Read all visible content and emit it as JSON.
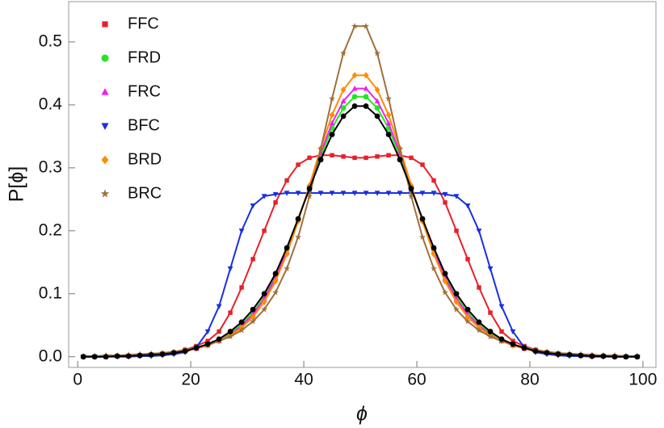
{
  "chart_data": {
    "type": "line",
    "x_label": "ϕ",
    "y_label": "P[ϕ]",
    "x": [
      1,
      3,
      5,
      7,
      9,
      11,
      13,
      15,
      17,
      19,
      21,
      23,
      25,
      27,
      29,
      31,
      33,
      35,
      37,
      39,
      41,
      43,
      45,
      47,
      49,
      51,
      53,
      55,
      57,
      59,
      61,
      63,
      65,
      67,
      69,
      71,
      73,
      75,
      77,
      79,
      81,
      83,
      85,
      87,
      89,
      91,
      93,
      95,
      97,
      99
    ],
    "xlim": [
      -1.6,
      102.3
    ],
    "xticks": [
      0,
      20,
      40,
      60,
      80,
      100
    ],
    "ylim": [
      -0.017,
      0.564
    ],
    "yticks": [
      {
        "value": 0,
        "label": "0.0"
      },
      0.1,
      0.2,
      0.3,
      0.4,
      0.5
    ],
    "legend": "upper left",
    "series": [
      {
        "name": "FFC",
        "color": "#e8202a",
        "marker": "square",
        "values": [
          0,
          0,
          0,
          0.001,
          0.001,
          0.002,
          0.003,
          0.005,
          0.007,
          0.011,
          0.017,
          0.025,
          0.04,
          0.07,
          0.11,
          0.155,
          0.2,
          0.245,
          0.28,
          0.305,
          0.316,
          0.32,
          0.32,
          0.318,
          0.316,
          0.316,
          0.318,
          0.32,
          0.32,
          0.316,
          0.305,
          0.28,
          0.245,
          0.2,
          0.155,
          0.11,
          0.07,
          0.04,
          0.025,
          0.017,
          0.011,
          0.007,
          0.005,
          0.003,
          0.002,
          0.001,
          0.001,
          0,
          0,
          0
        ]
      },
      {
        "name": "FRD",
        "color": "#22e622",
        "marker": "circle",
        "values": [
          0,
          0,
          0,
          0.001,
          0.001,
          0.002,
          0.003,
          0.004,
          0.006,
          0.009,
          0.013,
          0.019,
          0.026,
          0.037,
          0.051,
          0.07,
          0.095,
          0.128,
          0.17,
          0.218,
          0.269,
          0.319,
          0.363,
          0.395,
          0.413,
          0.413,
          0.395,
          0.363,
          0.319,
          0.269,
          0.218,
          0.17,
          0.128,
          0.095,
          0.07,
          0.051,
          0.037,
          0.026,
          0.019,
          0.013,
          0.009,
          0.006,
          0.004,
          0.003,
          0.002,
          0.001,
          0.001,
          0,
          0,
          0
        ]
      },
      {
        "name": "FRC",
        "color": "#f020f0",
        "marker": "triangle",
        "values": [
          0,
          0,
          0,
          0.001,
          0.001,
          0.002,
          0.003,
          0.004,
          0.006,
          0.009,
          0.013,
          0.018,
          0.025,
          0.035,
          0.049,
          0.067,
          0.092,
          0.125,
          0.167,
          0.217,
          0.27,
          0.324,
          0.371,
          0.406,
          0.426,
          0.426,
          0.406,
          0.371,
          0.324,
          0.27,
          0.217,
          0.167,
          0.125,
          0.092,
          0.067,
          0.049,
          0.035,
          0.025,
          0.018,
          0.013,
          0.009,
          0.006,
          0.004,
          0.003,
          0.002,
          0.001,
          0.001,
          0,
          0,
          0
        ]
      },
      {
        "name": "BFC",
        "color": "#1a2fe0",
        "marker": "triangle-down",
        "values": [
          0,
          0,
          0,
          0,
          0,
          0.001,
          0.001,
          0.002,
          0.004,
          0.007,
          0.015,
          0.04,
          0.08,
          0.14,
          0.2,
          0.24,
          0.255,
          0.258,
          0.26,
          0.26,
          0.26,
          0.26,
          0.26,
          0.26,
          0.26,
          0.26,
          0.26,
          0.26,
          0.26,
          0.26,
          0.26,
          0.26,
          0.258,
          0.255,
          0.24,
          0.2,
          0.14,
          0.08,
          0.04,
          0.015,
          0.007,
          0.004,
          0.002,
          0.001,
          0.001,
          0,
          0,
          0,
          0,
          0
        ]
      },
      {
        "name": "BRD",
        "color": "#ff8c00",
        "marker": "diamond",
        "values": [
          0,
          0,
          0.001,
          0.001,
          0.001,
          0.002,
          0.003,
          0.004,
          0.006,
          0.009,
          0.013,
          0.018,
          0.025,
          0.034,
          0.046,
          0.063,
          0.087,
          0.12,
          0.163,
          0.215,
          0.272,
          0.331,
          0.384,
          0.424,
          0.447,
          0.447,
          0.424,
          0.384,
          0.331,
          0.272,
          0.215,
          0.163,
          0.12,
          0.087,
          0.063,
          0.046,
          0.034,
          0.025,
          0.018,
          0.013,
          0.009,
          0.006,
          0.004,
          0.003,
          0.002,
          0.001,
          0.001,
          0.001,
          0,
          0
        ]
      },
      {
        "name": "BRC",
        "color": "#a0703c",
        "marker": "star",
        "values": [
          0.001,
          0.001,
          0.002,
          0.002,
          0.003,
          0.004,
          0.005,
          0.006,
          0.008,
          0.011,
          0.015,
          0.019,
          0.025,
          0.032,
          0.042,
          0.056,
          0.075,
          0.102,
          0.14,
          0.19,
          0.255,
          0.33,
          0.41,
          0.482,
          0.525,
          0.525,
          0.482,
          0.41,
          0.33,
          0.255,
          0.19,
          0.14,
          0.102,
          0.075,
          0.056,
          0.042,
          0.032,
          0.025,
          0.019,
          0.015,
          0.011,
          0.008,
          0.006,
          0.005,
          0.004,
          0.003,
          0.002,
          0.002,
          0.001,
          0.001
        ]
      },
      {
        "color": "#000000",
        "marker": "circle",
        "values": [
          0,
          0,
          0,
          0.001,
          0.001,
          0.002,
          0.003,
          0.004,
          0.006,
          0.009,
          0.014,
          0.02,
          0.028,
          0.04,
          0.055,
          0.075,
          0.1,
          0.132,
          0.173,
          0.219,
          0.267,
          0.313,
          0.353,
          0.382,
          0.398,
          0.398,
          0.382,
          0.353,
          0.313,
          0.267,
          0.219,
          0.173,
          0.132,
          0.1,
          0.075,
          0.055,
          0.04,
          0.028,
          0.02,
          0.014,
          0.009,
          0.006,
          0.004,
          0.003,
          0.002,
          0.001,
          0.001,
          0,
          0,
          0
        ]
      }
    ]
  }
}
